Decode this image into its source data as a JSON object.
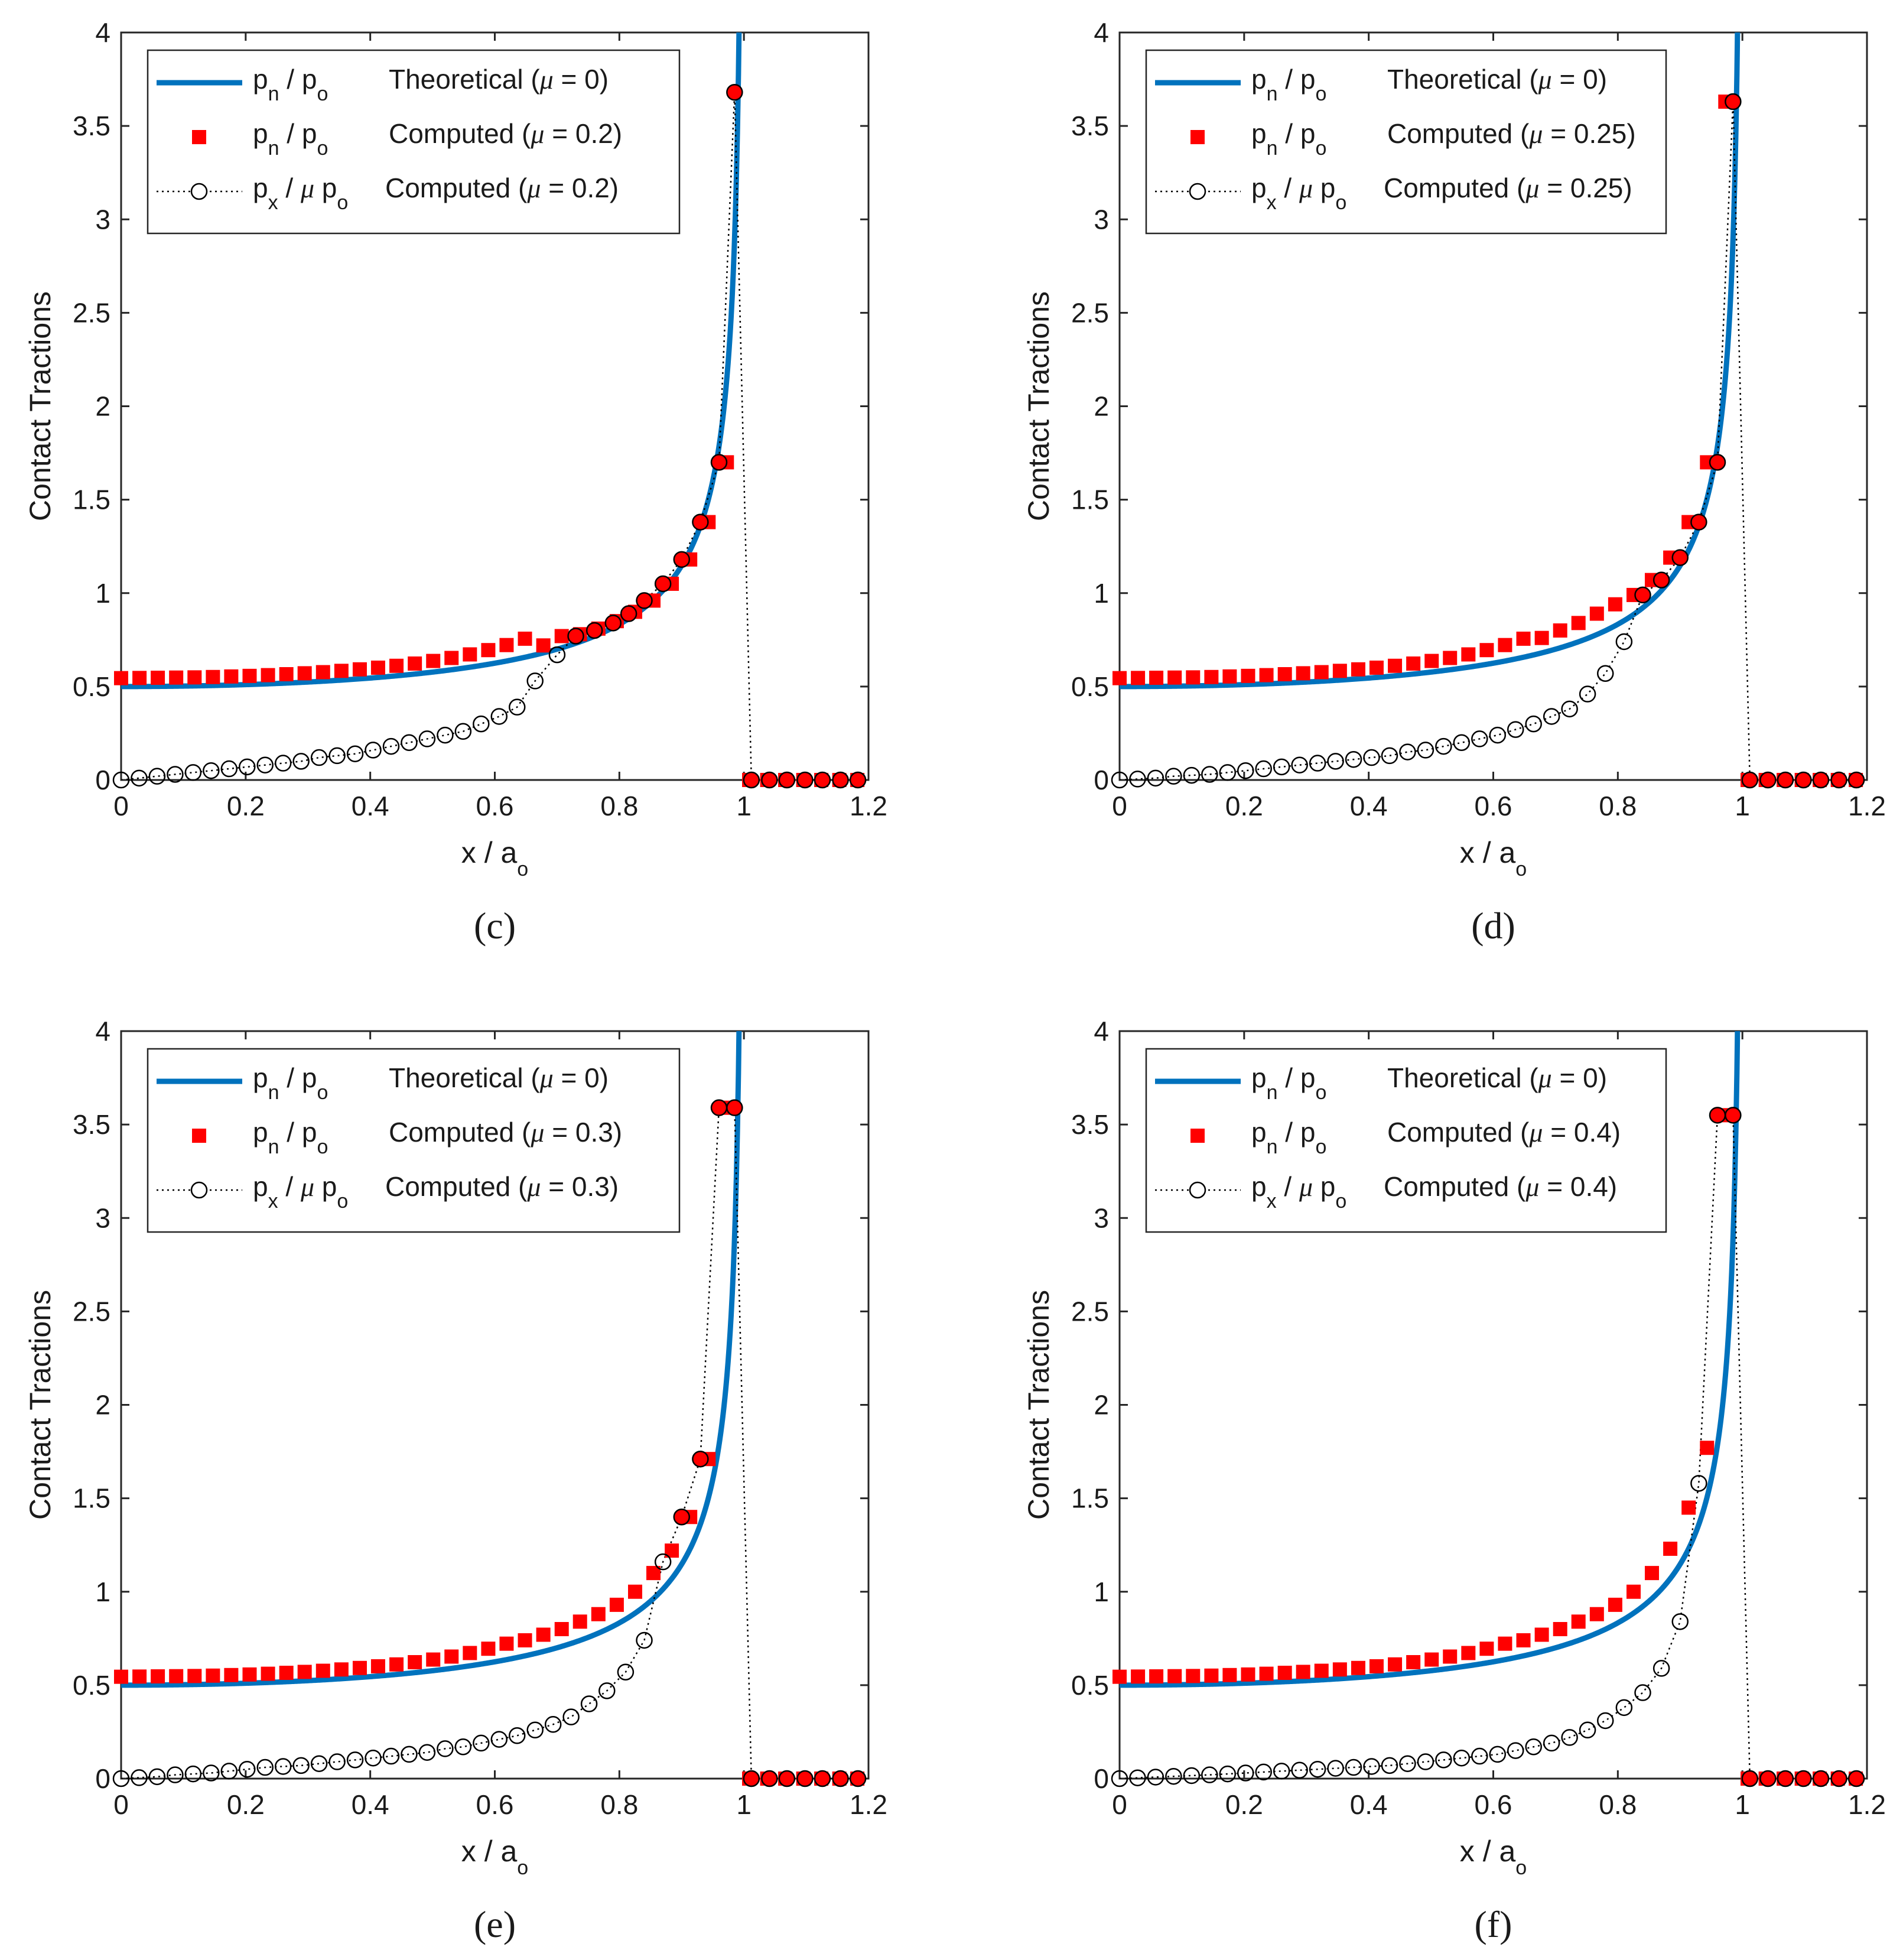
{
  "chart_data": [
    {
      "type": "line",
      "caption": "(c)",
      "xlabel": "x / a",
      "xlabel_sub": "o",
      "ylabel": "Contact Tractions",
      "xlim": [
        0,
        1.2
      ],
      "ylim": [
        0,
        4
      ],
      "xticks": [
        "0",
        "0.2",
        "0.4",
        "0.6",
        "0.8",
        "1",
        "1.2"
      ],
      "yticks": [
        "0",
        "0.5",
        "1",
        "1.5",
        "2",
        "2.5",
        "3",
        "3.5",
        "4"
      ],
      "mu": 0.2,
      "legend": [
        {
          "symbol": "line",
          "sym": "p",
          "sub": "n",
          "mid": " / p",
          "sub2": "o",
          "desc": "Theoretical (",
          "mu_sym": "μ",
          "eq": " = 0)"
        },
        {
          "symbol": "square",
          "sym": "p",
          "sub": "n",
          "mid": " / p",
          "sub2": "o",
          "desc": "Computed (",
          "mu_sym": "μ",
          "eq": " = 0.2)"
        },
        {
          "symbol": "circle",
          "sym": "p",
          "sub": "x",
          "mid": " / ",
          "mu_mid": "μ",
          "mid2": " p",
          "sub2": "o",
          "desc": "Computed (",
          "mu_sym": "μ",
          "eq": " = 0.2)"
        }
      ],
      "series": [
        {
          "name": "pn/po Theoretical (mu = 0)",
          "kind": "theoretical",
          "color": "#0072BD"
        },
        {
          "name": "pn/po Computed (mu = 0.2)",
          "kind": "pn",
          "color": "#FF0000",
          "x": [
            0,
            0.0295,
            0.0589,
            0.0884,
            0.1179,
            0.1474,
            0.1768,
            0.2063,
            0.2358,
            0.2653,
            0.2947,
            0.3242,
            0.3537,
            0.3832,
            0.4126,
            0.4421,
            0.4716,
            0.5011,
            0.5305,
            0.56,
            0.5895,
            0.6189,
            0.6484,
            0.6779,
            0.7074,
            0.7368,
            0.7663,
            0.7958,
            0.8253,
            0.8547,
            0.8842,
            0.9137,
            0.9432,
            0.9726,
            1.0084,
            1.0374,
            1.0663,
            1.0953,
            1.1242,
            1.1532,
            1.1821
          ],
          "y": [
            0.545,
            0.546,
            0.547,
            0.548,
            0.549,
            0.551,
            0.554,
            0.557,
            0.561,
            0.566,
            0.571,
            0.577,
            0.584,
            0.592,
            0.601,
            0.611,
            0.623,
            0.637,
            0.653,
            0.672,
            0.695,
            0.722,
            0.756,
            0.72,
            0.77,
            0.78,
            0.81,
            0.85,
            0.9,
            0.96,
            1.05,
            1.18,
            1.38,
            1.7,
            0,
            0,
            0,
            0,
            0,
            0,
            0
          ],
          "filled_overlap_from": 25,
          "overlap_y": [
            0.77,
            0.78,
            0.81,
            0.85,
            0.9,
            0.96,
            1.05,
            1.18,
            1.38,
            1.7,
            3.68
          ]
        },
        {
          "name": "px/(mu po) Computed (mu = 0.2)",
          "kind": "px",
          "color": "#000000",
          "x": [
            0,
            0.0289,
            0.0578,
            0.0867,
            0.1156,
            0.1445,
            0.1734,
            0.2023,
            0.2312,
            0.2601,
            0.289,
            0.3179,
            0.3468,
            0.3757,
            0.4046,
            0.4335,
            0.4624,
            0.4913,
            0.5202,
            0.5491,
            0.578,
            0.6069,
            0.6358,
            0.6647,
            0.7,
            0.73,
            0.76,
            0.79,
            0.815,
            0.84,
            0.87,
            0.9,
            0.93,
            0.96,
            0.985,
            1.012,
            1.041,
            1.069,
            1.098,
            1.126,
            1.155,
            1.183
          ],
          "y": [
            0,
            0.01,
            0.02,
            0.03,
            0.04,
            0.05,
            0.06,
            0.07,
            0.08,
            0.09,
            0.1,
            0.12,
            0.13,
            0.14,
            0.16,
            0.18,
            0.2,
            0.22,
            0.24,
            0.26,
            0.3,
            0.34,
            0.39,
            0.53,
            0.67,
            0.77,
            0.8,
            0.84,
            0.89,
            0.96,
            1.05,
            1.18,
            1.38,
            1.7,
            3.68,
            0,
            0,
            0,
            0,
            0,
            0,
            0
          ]
        }
      ]
    },
    {
      "type": "line",
      "caption": "(d)",
      "xlabel": "x / a",
      "xlabel_sub": "o",
      "ylabel": "Contact Tractions",
      "xlim": [
        0,
        1.2
      ],
      "ylim": [
        0,
        4
      ],
      "xticks": [
        "0",
        "0.2",
        "0.4",
        "0.6",
        "0.8",
        "1",
        "1.2"
      ],
      "yticks": [
        "0",
        "0.5",
        "1",
        "1.5",
        "2",
        "2.5",
        "3",
        "3.5",
        "4"
      ],
      "mu": 0.25,
      "legend": [
        {
          "symbol": "line",
          "sym": "p",
          "sub": "n",
          "mid": " / p",
          "sub2": "o",
          "desc": "Theoretical (",
          "mu_sym": "μ",
          "eq": " = 0)"
        },
        {
          "symbol": "square",
          "sym": "p",
          "sub": "n",
          "mid": " / p",
          "sub2": "o",
          "desc": "Computed (",
          "mu_sym": "μ",
          "eq": " = 0.25)"
        },
        {
          "symbol": "circle",
          "sym": "p",
          "sub": "x",
          "mid": " / ",
          "mu_mid": "μ",
          "mid2": " p",
          "sub2": "o",
          "desc": "Computed (",
          "mu_sym": "μ",
          "eq": " = 0.25)"
        }
      ],
      "series": [
        {
          "name": "pn/po Theoretical (mu = 0)",
          "kind": "theoretical",
          "color": "#0072BD"
        },
        {
          "name": "pn/po Computed (mu = 0.25)",
          "kind": "pn",
          "color": "#FF0000",
          "x": [
            0,
            0.0295,
            0.0589,
            0.0884,
            0.1179,
            0.1474,
            0.1768,
            0.2063,
            0.2358,
            0.2653,
            0.2947,
            0.3242,
            0.3537,
            0.3832,
            0.4126,
            0.4421,
            0.4716,
            0.5011,
            0.5305,
            0.56,
            0.5895,
            0.6189,
            0.6484,
            0.6779,
            0.7074,
            0.7368,
            0.7663,
            0.7958,
            0.8253,
            0.8547,
            0.8842,
            0.9137,
            0.9432,
            0.9726,
            1.0084,
            1.0374,
            1.0663,
            1.0953,
            1.1242,
            1.1532,
            1.1821
          ],
          "y": [
            0.545,
            0.546,
            0.547,
            0.548,
            0.549,
            0.551,
            0.554,
            0.557,
            0.561,
            0.566,
            0.571,
            0.577,
            0.584,
            0.592,
            0.601,
            0.611,
            0.623,
            0.637,
            0.653,
            0.672,
            0.695,
            0.722,
            0.756,
            0.76,
            0.8,
            0.84,
            0.89,
            0.94,
            0.99,
            1.07,
            1.19,
            1.38,
            1.7,
            3.63,
            0,
            0,
            0,
            0,
            0,
            0,
            0
          ]
        },
        {
          "name": "px/(mu po) Computed (mu = 0.25)",
          "kind": "px",
          "color": "#000000",
          "x": [
            0,
            0.0289,
            0.0578,
            0.0867,
            0.1156,
            0.1445,
            0.1734,
            0.2023,
            0.2312,
            0.2601,
            0.289,
            0.3179,
            0.3468,
            0.3757,
            0.4046,
            0.4335,
            0.4624,
            0.4913,
            0.5202,
            0.5491,
            0.578,
            0.6069,
            0.6358,
            0.6647,
            0.6936,
            0.7225,
            0.7514,
            0.78,
            0.81,
            0.84,
            0.87,
            0.9,
            0.93,
            0.96,
            0.985,
            1.012,
            1.041,
            1.069,
            1.098,
            1.126,
            1.155,
            1.183
          ],
          "y": [
            0,
            0.005,
            0.01,
            0.02,
            0.025,
            0.03,
            0.04,
            0.05,
            0.06,
            0.07,
            0.08,
            0.09,
            0.1,
            0.11,
            0.12,
            0.13,
            0.15,
            0.16,
            0.18,
            0.2,
            0.22,
            0.24,
            0.27,
            0.3,
            0.34,
            0.38,
            0.46,
            0.57,
            0.74,
            0.99,
            1.07,
            1.19,
            1.38,
            1.7,
            3.63,
            0,
            0,
            0,
            0,
            0,
            0,
            0
          ]
        }
      ]
    },
    {
      "type": "line",
      "caption": "(e)",
      "xlabel": "x / a",
      "xlabel_sub": "o",
      "ylabel": "Contact Tractions",
      "xlim": [
        0,
        1.2
      ],
      "ylim": [
        0,
        4
      ],
      "xticks": [
        "0",
        "0.2",
        "0.4",
        "0.6",
        "0.8",
        "1",
        "1.2"
      ],
      "yticks": [
        "0",
        "0.5",
        "1",
        "1.5",
        "2",
        "2.5",
        "3",
        "3.5",
        "4"
      ],
      "mu": 0.3,
      "legend": [
        {
          "symbol": "line",
          "sym": "p",
          "sub": "n",
          "mid": " / p",
          "sub2": "o",
          "desc": "Theoretical (",
          "mu_sym": "μ",
          "eq": " = 0)"
        },
        {
          "symbol": "square",
          "sym": "p",
          "sub": "n",
          "mid": " / p",
          "sub2": "o",
          "desc": "Computed (",
          "mu_sym": "μ",
          "eq": " = 0.3)"
        },
        {
          "symbol": "circle",
          "sym": "p",
          "sub": "x",
          "mid": " / ",
          "mu_mid": "μ",
          "mid2": " p",
          "sub2": "o",
          "desc": "Computed (",
          "mu_sym": "μ",
          "eq": " = 0.3)"
        }
      ],
      "series": [
        {
          "name": "pn/po Theoretical (mu = 0)",
          "kind": "theoretical",
          "color": "#0072BD"
        },
        {
          "name": "pn/po Computed (mu = 0.3)",
          "kind": "pn",
          "color": "#FF0000",
          "x": [
            0,
            0.0295,
            0.0589,
            0.0884,
            0.1179,
            0.1474,
            0.1768,
            0.2063,
            0.2358,
            0.2653,
            0.2947,
            0.3242,
            0.3537,
            0.3832,
            0.4126,
            0.4421,
            0.4716,
            0.5011,
            0.5305,
            0.56,
            0.5895,
            0.6189,
            0.6484,
            0.6779,
            0.7074,
            0.7368,
            0.7663,
            0.7958,
            0.8253,
            0.8547,
            0.8842,
            0.9137,
            0.9432,
            0.9726,
            1.0084,
            1.0374,
            1.0663,
            1.0953,
            1.1242,
            1.1532,
            1.1821
          ],
          "y": [
            0.545,
            0.546,
            0.547,
            0.548,
            0.549,
            0.551,
            0.554,
            0.557,
            0.561,
            0.566,
            0.571,
            0.577,
            0.584,
            0.592,
            0.601,
            0.611,
            0.623,
            0.637,
            0.653,
            0.672,
            0.695,
            0.722,
            0.74,
            0.77,
            0.8,
            0.84,
            0.88,
            0.93,
            1.0,
            1.1,
            1.22,
            1.4,
            1.71,
            3.59,
            0,
            0,
            0,
            0,
            0,
            0,
            0
          ]
        },
        {
          "name": "px/(mu po) Computed (mu = 0.3)",
          "kind": "px",
          "color": "#000000",
          "x": [
            0,
            0.0289,
            0.0578,
            0.0867,
            0.1156,
            0.1445,
            0.1734,
            0.2023,
            0.2312,
            0.2601,
            0.289,
            0.3179,
            0.3468,
            0.3757,
            0.4046,
            0.4335,
            0.4624,
            0.4913,
            0.5202,
            0.5491,
            0.578,
            0.6069,
            0.6358,
            0.6647,
            0.6936,
            0.7225,
            0.7514,
            0.78,
            0.81,
            0.84,
            0.87,
            0.9,
            0.93,
            0.96,
            0.985,
            1.012,
            1.041,
            1.069,
            1.098,
            1.126,
            1.155,
            1.183
          ],
          "y": [
            0,
            0.005,
            0.01,
            0.02,
            0.025,
            0.03,
            0.04,
            0.05,
            0.06,
            0.065,
            0.07,
            0.08,
            0.09,
            0.1,
            0.11,
            0.12,
            0.13,
            0.14,
            0.16,
            0.17,
            0.19,
            0.21,
            0.23,
            0.26,
            0.29,
            0.33,
            0.4,
            0.47,
            0.57,
            0.74,
            1.16,
            1.4,
            1.71,
            3.59,
            3.59,
            0,
            0,
            0,
            0,
            0,
            0,
            0
          ]
        }
      ]
    },
    {
      "type": "line",
      "caption": "(f)",
      "xlabel": "x / a",
      "xlabel_sub": "o",
      "ylabel": "Contact Tractions",
      "xlim": [
        0,
        1.2
      ],
      "ylim": [
        0,
        4
      ],
      "xticks": [
        "0",
        "0.2",
        "0.4",
        "0.6",
        "0.8",
        "1",
        "1.2"
      ],
      "yticks": [
        "0",
        "0.5",
        "1",
        "1.5",
        "2",
        "2.5",
        "3",
        "3.5",
        "4"
      ],
      "mu": 0.4,
      "legend": [
        {
          "symbol": "line",
          "sym": "p",
          "sub": "n",
          "mid": " / p",
          "sub2": "o",
          "desc": "Theoretical (",
          "mu_sym": "μ",
          "eq": " = 0)"
        },
        {
          "symbol": "square",
          "sym": "p",
          "sub": "n",
          "mid": " / p",
          "sub2": "o",
          "desc": "Computed (",
          "mu_sym": "μ",
          "eq": " = 0.4)"
        },
        {
          "symbol": "circle",
          "sym": "p",
          "sub": "x",
          "mid": " / ",
          "mu_mid": "μ",
          "mid2": " p",
          "sub2": "o",
          "desc": "Computed (",
          "mu_sym": "μ",
          "eq": " = 0.4)"
        }
      ],
      "series": [
        {
          "name": "pn/po Theoretical (mu = 0)",
          "kind": "theoretical",
          "color": "#0072BD"
        },
        {
          "name": "pn/po Computed (mu = 0.4)",
          "kind": "pn",
          "color": "#FF0000",
          "x": [
            0,
            0.0295,
            0.0589,
            0.0884,
            0.1179,
            0.1474,
            0.1768,
            0.2063,
            0.2358,
            0.2653,
            0.2947,
            0.3242,
            0.3537,
            0.3832,
            0.4126,
            0.4421,
            0.4716,
            0.5011,
            0.5305,
            0.56,
            0.5895,
            0.6189,
            0.6484,
            0.6779,
            0.7074,
            0.7368,
            0.7663,
            0.7958,
            0.8253,
            0.8547,
            0.8842,
            0.9137,
            0.9432,
            0.9726,
            1.0084,
            1.0374,
            1.0663,
            1.0953,
            1.1242,
            1.1532,
            1.1821
          ],
          "y": [
            0.545,
            0.546,
            0.547,
            0.548,
            0.549,
            0.551,
            0.554,
            0.557,
            0.561,
            0.566,
            0.571,
            0.577,
            0.584,
            0.592,
            0.601,
            0.611,
            0.623,
            0.637,
            0.653,
            0.672,
            0.695,
            0.722,
            0.74,
            0.77,
            0.8,
            0.84,
            0.88,
            0.93,
            1.0,
            1.1,
            1.23,
            1.45,
            1.77,
            3.55,
            0,
            0,
            0,
            0,
            0,
            0,
            0
          ]
        },
        {
          "name": "px/(mu po) Computed (mu = 0.4)",
          "kind": "px",
          "color": "#000000",
          "x": [
            0,
            0.0289,
            0.0578,
            0.0867,
            0.1156,
            0.1445,
            0.1734,
            0.2023,
            0.2312,
            0.2601,
            0.289,
            0.3179,
            0.3468,
            0.3757,
            0.4046,
            0.4335,
            0.4624,
            0.4913,
            0.5202,
            0.5491,
            0.578,
            0.6069,
            0.6358,
            0.6647,
            0.6936,
            0.7225,
            0.7514,
            0.78,
            0.81,
            0.84,
            0.87,
            0.9,
            0.93,
            0.96,
            0.985,
            1.012,
            1.041,
            1.069,
            1.098,
            1.126,
            1.155,
            1.183
          ],
          "y": [
            0,
            0.004,
            0.008,
            0.012,
            0.016,
            0.02,
            0.025,
            0.03,
            0.035,
            0.04,
            0.045,
            0.05,
            0.055,
            0.06,
            0.065,
            0.07,
            0.08,
            0.09,
            0.1,
            0.11,
            0.12,
            0.13,
            0.15,
            0.17,
            0.19,
            0.22,
            0.26,
            0.31,
            0.38,
            0.46,
            0.59,
            0.84,
            1.58,
            3.55,
            3.55,
            0,
            0,
            0,
            0,
            0,
            0,
            0
          ]
        }
      ]
    }
  ]
}
